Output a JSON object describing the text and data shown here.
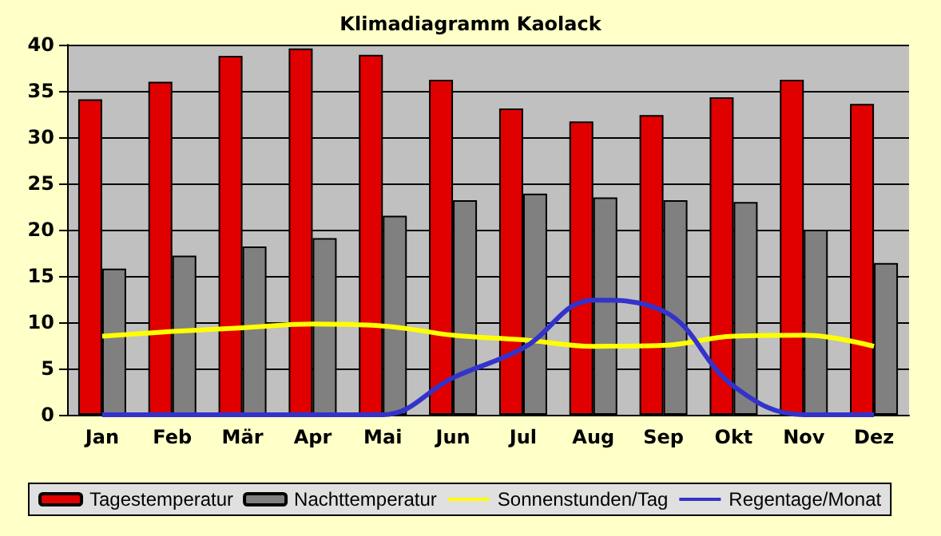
{
  "chart_data": {
    "type": "bar",
    "title": "Klimadiagramm Kaolack",
    "categories": [
      "Jan",
      "Feb",
      "Mär",
      "Apr",
      "Mai",
      "Jun",
      "Jul",
      "Aug",
      "Sep",
      "Okt",
      "Nov",
      "Dez"
    ],
    "series": [
      {
        "name": "Tagestemperatur",
        "color": "#e00000",
        "values": [
          34.1,
          36.0,
          38.8,
          39.6,
          38.9,
          36.2,
          33.1,
          31.7,
          32.4,
          34.3,
          36.2,
          33.6
        ]
      },
      {
        "name": "Nachttemperatur",
        "color": "#808080",
        "values": [
          15.8,
          17.2,
          18.2,
          19.1,
          21.5,
          23.2,
          23.9,
          23.5,
          23.2,
          23.0,
          20.0,
          16.4
        ]
      },
      {
        "name": "Sonnenstunden/Tag",
        "type": "line",
        "color": "#ffff00",
        "values": [
          8.5,
          9.0,
          9.4,
          9.8,
          9.6,
          8.6,
          8.1,
          7.4,
          7.5,
          8.5,
          8.6,
          7.4
        ]
      },
      {
        "name": "Regentage/Monat",
        "type": "line",
        "color": "#3333cc",
        "values": [
          0,
          0,
          0,
          0,
          0,
          4.0,
          7.2,
          12.4,
          11.2,
          3.1,
          0,
          0
        ]
      }
    ],
    "ylim": [
      0,
      40
    ],
    "yticks": [
      0,
      5,
      10,
      15,
      20,
      25,
      30,
      35,
      40
    ],
    "grid": "y",
    "legend": "bottom",
    "marker": "none"
  }
}
